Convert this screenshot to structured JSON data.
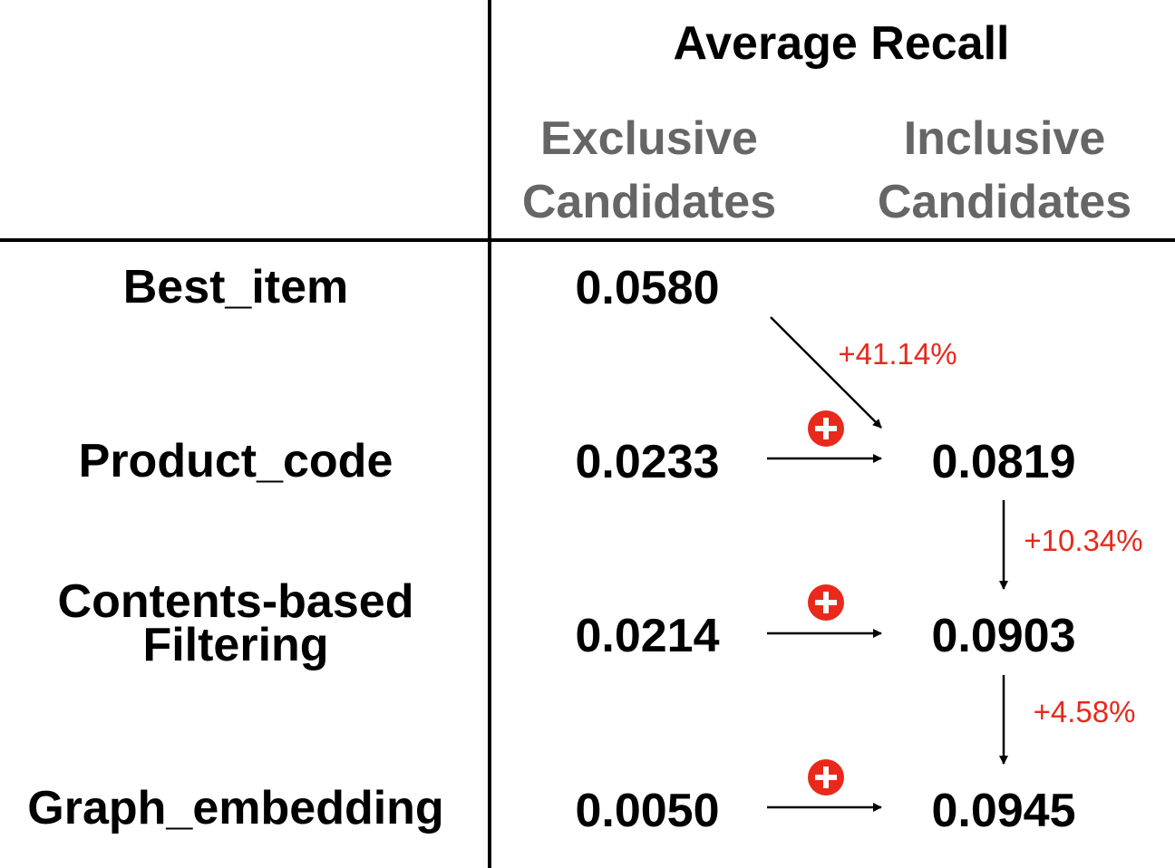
{
  "header": {
    "title": "Average Recall",
    "col_exclusive": [
      "Exclusive",
      "Candidates"
    ],
    "col_inclusive": [
      "Inclusive",
      "Candidates"
    ]
  },
  "rows": [
    {
      "method": [
        "Best_item"
      ],
      "exclusive": "0.0580",
      "inclusive": ""
    },
    {
      "method": [
        "Product_code"
      ],
      "exclusive": "0.0233",
      "inclusive": "0.0819"
    },
    {
      "method": [
        "Contents-based",
        "Filtering"
      ],
      "exclusive": "0.0214",
      "inclusive": "0.0903"
    },
    {
      "method": [
        "Graph_embedding"
      ],
      "exclusive": "0.0050",
      "inclusive": "0.0945"
    }
  ],
  "gains": [
    "+41.14%",
    "+10.34%",
    "+4.58%"
  ],
  "colors": {
    "gain": "#e8291c",
    "plus_badge": "#e8291c",
    "subheader": "#666666",
    "lines": "#000000"
  },
  "icons": [
    "plus-circle-icon",
    "arrow-right-icon",
    "arrow-down-icon"
  ]
}
